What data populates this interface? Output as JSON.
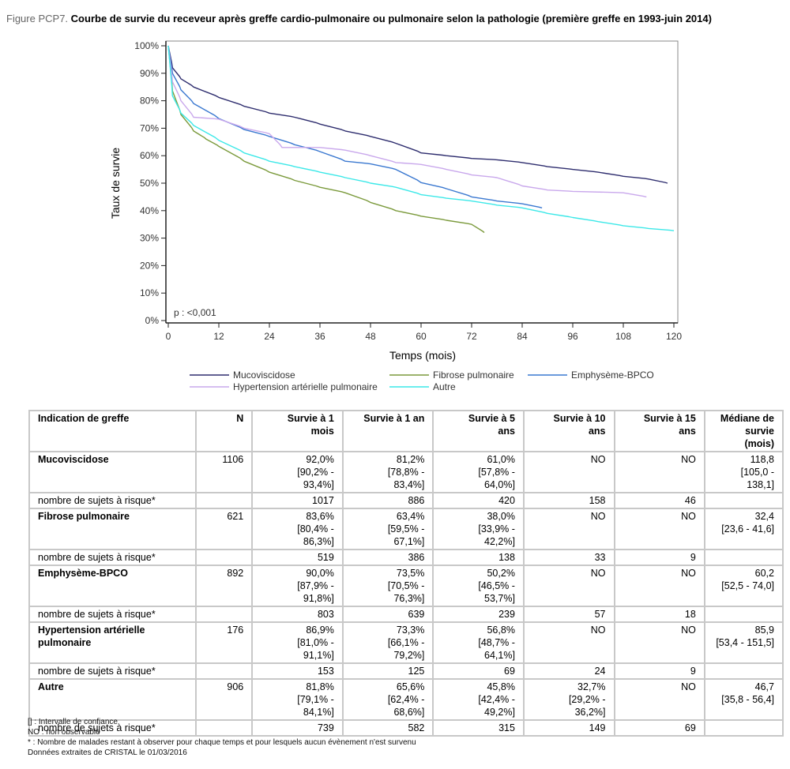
{
  "figure": {
    "label": "Figure PCP7.",
    "title": "Courbe de survie du receveur après greffe cardio-pulmonaire ou pulmonaire selon la pathologie (première greffe en 1993-juin 2014)"
  },
  "chart_data": {
    "type": "line",
    "title": "Courbe de survie du receveur après greffe cardio-pulmonaire ou pulmonaire selon la pathologie (première greffe en 1993-juin 2014)",
    "xlabel": "Temps (mois)",
    "ylabel": "Taux de survie",
    "xlim": [
      0,
      120
    ],
    "ylim": [
      0,
      100
    ],
    "xticks": [
      0,
      12,
      24,
      36,
      48,
      60,
      72,
      84,
      96,
      108,
      120
    ],
    "yticks": [
      0,
      10,
      20,
      30,
      40,
      50,
      60,
      70,
      80,
      90,
      100
    ],
    "ytick_labels": [
      "0%",
      "10%",
      "20%",
      "30%",
      "40%",
      "50%",
      "60%",
      "70%",
      "80%",
      "90%",
      "100%"
    ],
    "grid": false,
    "legend_position": "bottom",
    "annotation": "p : <0,001",
    "series": [
      {
        "name": "Mucoviscidose",
        "color": "#2e2d6e",
        "x": [
          0,
          1,
          3,
          6,
          12,
          18,
          24,
          30,
          36,
          42,
          48,
          54,
          60,
          66,
          72,
          78,
          84,
          90,
          96,
          102,
          108,
          114,
          118.5
        ],
        "y": [
          100,
          92,
          88,
          85,
          81.2,
          78,
          75.5,
          74,
          71.5,
          69,
          67,
          64.5,
          61,
          60,
          59,
          58.5,
          57.5,
          56,
          55,
          54,
          52.5,
          51.5,
          50
        ]
      },
      {
        "name": "Fibrose pulmonaire",
        "color": "#7b9a3c",
        "x": [
          0,
          1,
          3,
          6,
          9,
          12,
          18,
          24,
          30,
          36,
          42,
          48,
          54,
          60,
          66,
          72,
          75
        ],
        "y": [
          100,
          83.6,
          75,
          69,
          66,
          63.4,
          58,
          54,
          51,
          48.5,
          46.5,
          43,
          40,
          38,
          36.5,
          35,
          32
        ]
      },
      {
        "name": "Emphysème-BPCO",
        "color": "#3a78d0",
        "x": [
          0,
          1,
          3,
          6,
          12,
          18,
          24,
          30,
          36,
          42,
          48,
          54,
          60,
          66,
          72,
          78,
          84,
          88.7
        ],
        "y": [
          100,
          90,
          84,
          79,
          73.5,
          69.5,
          67,
          64,
          61.5,
          58,
          57,
          55,
          50.2,
          48,
          45,
          43.5,
          42.5,
          41
        ]
      },
      {
        "name": "Hypertension artérielle pulmonaire",
        "color": "#c9a8ec",
        "x": [
          0,
          1,
          3,
          6,
          12,
          18,
          24,
          27,
          36,
          42,
          48,
          54,
          60,
          66,
          72,
          78,
          84,
          90,
          96,
          108,
          113.5
        ],
        "y": [
          100,
          86.9,
          80,
          74,
          73.3,
          70,
          68,
          63,
          63,
          62,
          60,
          57.5,
          56.8,
          55,
          53,
          52,
          49,
          47.5,
          47,
          46.5,
          45
        ]
      },
      {
        "name": "Autre",
        "color": "#3ce8e8",
        "x": [
          0,
          1,
          3,
          6,
          12,
          18,
          24,
          30,
          36,
          42,
          48,
          54,
          60,
          66,
          72,
          78,
          84,
          90,
          96,
          102,
          108,
          114,
          120
        ],
        "y": [
          100,
          81.8,
          75.5,
          71,
          65.6,
          61,
          58,
          56,
          54,
          52,
          50,
          48.5,
          45.8,
          44.5,
          43.5,
          42,
          41,
          39,
          37.5,
          36,
          34.5,
          33.5,
          32.7
        ]
      }
    ]
  },
  "legend": [
    {
      "label": "Mucoviscidose",
      "color": "#2e2d6e"
    },
    {
      "label": "Fibrose pulmonaire",
      "color": "#7b9a3c"
    },
    {
      "label": "Emphysème-BPCO",
      "color": "#3a78d0"
    },
    {
      "label": "Hypertension artérielle pulmonaire",
      "color": "#c9a8ec"
    },
    {
      "label": "Autre",
      "color": "#3ce8e8"
    }
  ],
  "table": {
    "headers": [
      "Indication de greffe",
      "N",
      "Survie à 1 mois",
      "Survie à 1 an",
      "Survie à 5 ans",
      "Survie à 10 ans",
      "Survie à 15 ans",
      "Médiane de survie (mois)"
    ],
    "header_lines": [
      [
        "Indication de greffe"
      ],
      [
        "N"
      ],
      [
        "Survie à 1",
        "mois"
      ],
      [
        "Survie à 1 an"
      ],
      [
        "Survie à 5",
        "ans"
      ],
      [
        "Survie à 10",
        "ans"
      ],
      [
        "Survie à 15",
        "ans"
      ],
      [
        "Médiane de",
        "survie (mois)"
      ]
    ],
    "risk_label": "nombre de sujets à risque*",
    "rows": [
      {
        "name": [
          "Mucoviscidose"
        ],
        "n": "1106",
        "cells": [
          [
            "92,0%",
            "[90,2% -",
            "93,4%]"
          ],
          [
            "81,2%",
            "[78,8% -",
            "83,4%]"
          ],
          [
            "61,0%",
            "[57,8% -",
            "64,0%]"
          ],
          [
            "NO"
          ],
          [
            "NO"
          ],
          [
            "118,8",
            "[105,0 -",
            "138,1]"
          ]
        ],
        "at_risk": [
          "1017",
          "886",
          "420",
          "158",
          "46",
          ""
        ]
      },
      {
        "name": [
          "Fibrose pulmonaire"
        ],
        "n": "621",
        "cells": [
          [
            "83,6%",
            "[80,4% -",
            "86,3%]"
          ],
          [
            "63,4%",
            "[59,5% -",
            "67,1%]"
          ],
          [
            "38,0%",
            "[33,9% -",
            "42,2%]"
          ],
          [
            "NO"
          ],
          [
            "NO"
          ],
          [
            "32,4",
            "[23,6 - 41,6]"
          ]
        ],
        "at_risk": [
          "519",
          "386",
          "138",
          "33",
          "9",
          ""
        ]
      },
      {
        "name": [
          "Emphysème-BPCO"
        ],
        "n": "892",
        "cells": [
          [
            "90,0%",
            "[87,9% -",
            "91,8%]"
          ],
          [
            "73,5%",
            "[70,5% -",
            "76,3%]"
          ],
          [
            "50,2%",
            "[46,5% -",
            "53,7%]"
          ],
          [
            "NO"
          ],
          [
            "NO"
          ],
          [
            "60,2",
            "[52,5 - 74,0]"
          ]
        ],
        "at_risk": [
          "803",
          "639",
          "239",
          "57",
          "18",
          ""
        ]
      },
      {
        "name": [
          "Hypertension artérielle",
          "pulmonaire"
        ],
        "n": "176",
        "cells": [
          [
            "86,9%",
            "[81,0% -",
            "91,1%]"
          ],
          [
            "73,3%",
            "[66,1% -",
            "79,2%]"
          ],
          [
            "56,8%",
            "[48,7% -",
            "64,1%]"
          ],
          [
            "NO"
          ],
          [
            "NO"
          ],
          [
            "85,9",
            "[53,4 - 151,5]"
          ]
        ],
        "at_risk": [
          "153",
          "125",
          "69",
          "24",
          "9",
          ""
        ]
      },
      {
        "name": [
          "Autre"
        ],
        "n": "906",
        "cells": [
          [
            "81,8%",
            "[79,1% -",
            "84,1%]"
          ],
          [
            "65,6%",
            "[62,4% -",
            "68,6%]"
          ],
          [
            "45,8%",
            "[42,4% -",
            "49,2%]"
          ],
          [
            "32,7%",
            "[29,2% -",
            "36,2%]"
          ],
          [
            "NO"
          ],
          [
            "46,7",
            "[35,8 - 56,4]"
          ]
        ],
        "at_risk": [
          "739",
          "582",
          "315",
          "149",
          "69",
          ""
        ]
      }
    ]
  },
  "notes": [
    "[] : Intervalle de confiance",
    "NO : non observable",
    "* : Nombre de malades restant à observer pour chaque temps et pour lesquels aucun évènement n'est survenu",
    "Données extraites de CRISTAL le 01/03/2016"
  ]
}
